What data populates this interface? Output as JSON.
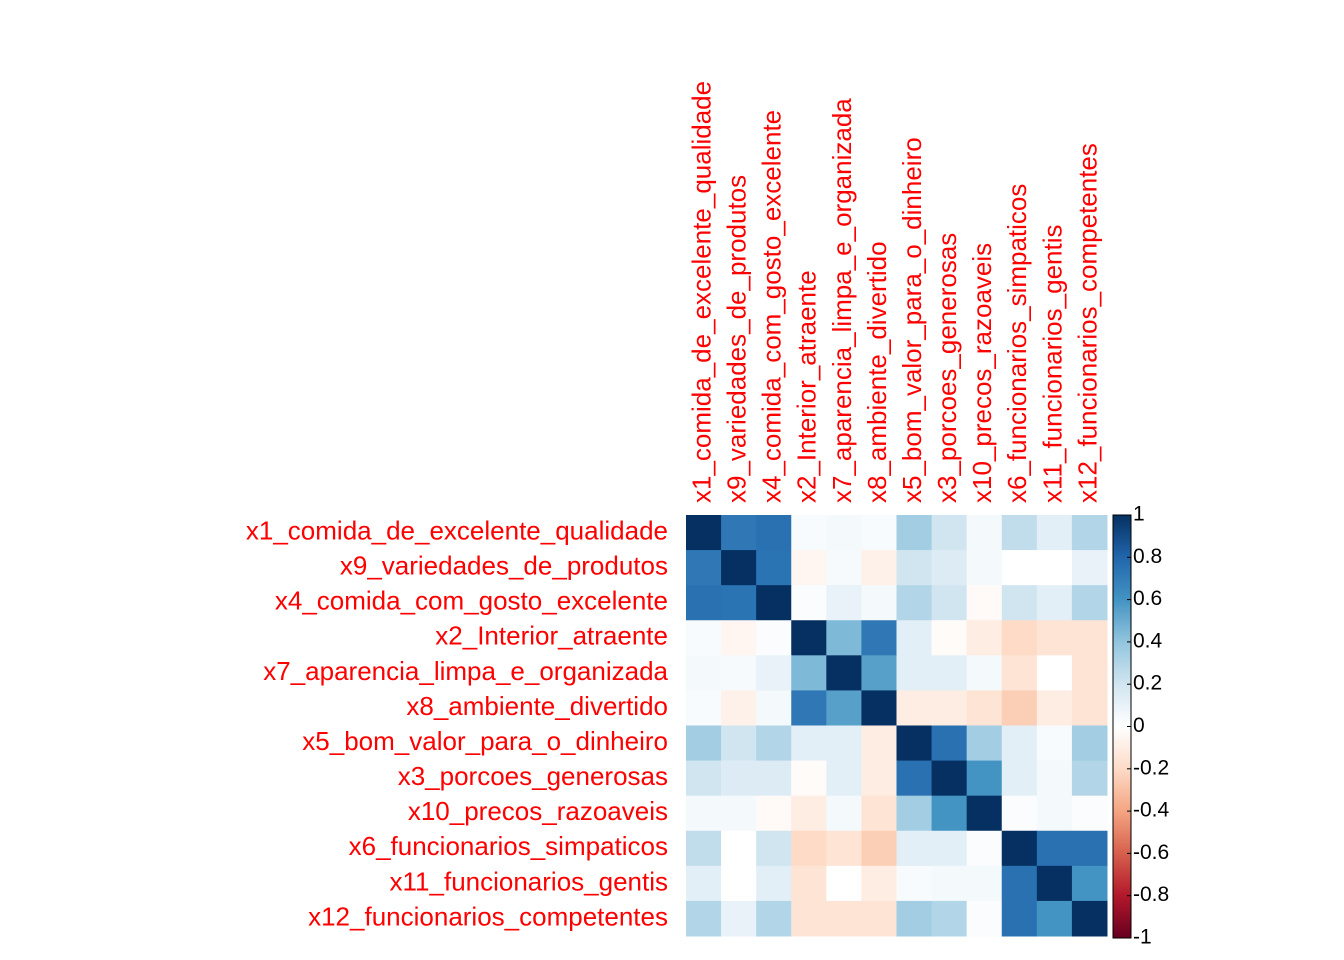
{
  "chart_data": {
    "type": "heatmap",
    "rows": [
      "x1_comida_de_excelente_qualidade",
      "x9_variedades_de_produtos",
      "x4_comida_com_gosto_excelente",
      "x2_Interior_atraente",
      "x7_aparencia_limpa_e_organizada",
      "x8_ambiente_divertido",
      "x5_bom_valor_para_o_dinheiro",
      "x3_porcoes_generosas",
      "x10_precos_razoaveis",
      "x6_funcionarios_simpaticos",
      "x11_funcionarios_gentis",
      "x12_funcionarios_competentes"
    ],
    "columns": [
      "x1_comida_de_excelente_qualidade",
      "x9_variedades_de_produtos",
      "x4_comida_com_gosto_excelente",
      "x2_Interior_atraente",
      "x7_aparencia_limpa_e_organizada",
      "x8_ambiente_divertido",
      "x5_bom_valor_para_o_dinheiro",
      "x3_porcoes_generosas",
      "x10_precos_razoaveis",
      "x6_funcionarios_simpaticos",
      "x11_funcionarios_gentis",
      "x12_funcionarios_competentes"
    ],
    "values": [
      [
        1,
        0.72,
        0.75,
        0.03,
        0.05,
        0.03,
        0.35,
        0.2,
        0.05,
        0.25,
        0.12,
        0.3
      ],
      [
        0.72,
        1,
        0.74,
        -0.05,
        0.04,
        -0.08,
        0.2,
        0.15,
        0.05,
        0.0,
        0.0,
        0.1
      ],
      [
        0.75,
        0.74,
        1,
        0.02,
        0.1,
        0.05,
        0.3,
        0.2,
        -0.03,
        0.2,
        0.12,
        0.3
      ],
      [
        0.03,
        -0.05,
        0.02,
        1,
        0.45,
        0.72,
        0.12,
        -0.02,
        -0.1,
        -0.2,
        -0.15,
        -0.15
      ],
      [
        0.05,
        0.04,
        0.1,
        0.45,
        1,
        0.55,
        0.12,
        0.12,
        0.05,
        -0.15,
        0.0,
        -0.15
      ],
      [
        0.03,
        -0.08,
        0.05,
        0.72,
        0.55,
        1,
        -0.1,
        -0.1,
        -0.15,
        -0.25,
        -0.1,
        -0.15
      ],
      [
        0.35,
        0.2,
        0.3,
        0.12,
        0.12,
        -0.1,
        1,
        0.75,
        0.35,
        0.12,
        0.03,
        0.35
      ],
      [
        0.2,
        0.15,
        0.15,
        -0.02,
        0.12,
        -0.1,
        0.75,
        1,
        0.6,
        0.12,
        0.05,
        0.3
      ],
      [
        0.05,
        0.05,
        -0.03,
        -0.1,
        0.05,
        -0.15,
        0.35,
        0.6,
        1,
        0.02,
        0.05,
        0.02
      ],
      [
        0.25,
        0.0,
        0.2,
        -0.2,
        -0.15,
        -0.25,
        0.12,
        0.12,
        0.02,
        1,
        0.75,
        0.75
      ],
      [
        0.12,
        0.0,
        0.12,
        -0.15,
        0.0,
        -0.1,
        0.03,
        0.05,
        0.05,
        0.75,
        1,
        0.6
      ],
      [
        0.3,
        0.1,
        0.3,
        -0.15,
        -0.15,
        -0.15,
        0.35,
        0.3,
        0.02,
        0.75,
        0.6,
        1
      ]
    ],
    "zlim": [
      -1,
      1
    ],
    "zticks": [
      1,
      0.8,
      0.6,
      0.4,
      0.2,
      0,
      -0.2,
      -0.4,
      -0.6,
      -0.8,
      -1
    ],
    "colors": [
      "#67001F",
      "#B2182B",
      "#D6604D",
      "#F4A582",
      "#FDDBC7",
      "#FFFFFF",
      "#D1E5F0",
      "#92C5DE",
      "#4393C3",
      "#2166AC",
      "#053061"
    ],
    "label_color": "#FF0000"
  }
}
